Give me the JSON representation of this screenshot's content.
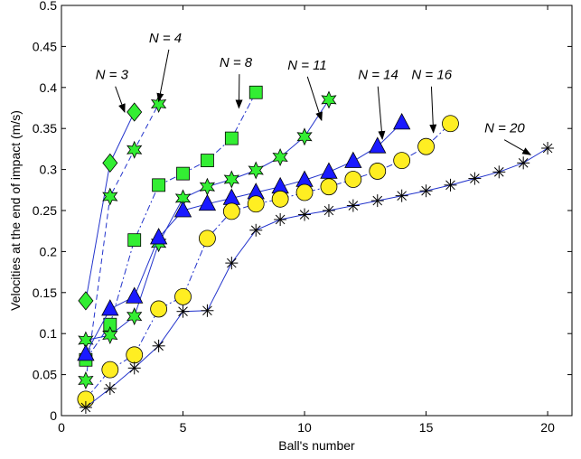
{
  "chart_data": {
    "type": "line",
    "xlabel": "Ball's number",
    "ylabel": "Velocities at the end of impact  (m/s)",
    "xlim": [
      0,
      21
    ],
    "ylim": [
      0,
      0.5
    ],
    "xticks": [
      0,
      5,
      10,
      15,
      20
    ],
    "yticks": [
      0,
      0.05,
      0.1,
      0.15,
      0.2,
      0.25,
      0.3,
      0.35,
      0.4,
      0.45,
      0.5
    ],
    "grid": false,
    "series": [
      {
        "key": "n3",
        "marker": "diamond",
        "fill": "#33ee33",
        "line": "solid",
        "x": [
          1,
          2,
          3
        ],
        "values": [
          0.14,
          0.308,
          0.37
        ]
      },
      {
        "key": "n4",
        "marker": "star",
        "fill": "#33ee33",
        "line": "dashed",
        "x": [
          1,
          2,
          3,
          4
        ],
        "values": [
          0.043,
          0.267,
          0.324,
          0.38
        ]
      },
      {
        "key": "n8",
        "marker": "square",
        "fill": "#33ee33",
        "line": "dashdot",
        "x": [
          1,
          2,
          3,
          4,
          5,
          6,
          7,
          8
        ],
        "values": [
          0.068,
          0.111,
          0.214,
          0.281,
          0.295,
          0.311,
          0.338,
          0.394
        ]
      },
      {
        "key": "n11",
        "marker": "star",
        "fill": "#33ee33",
        "line": "solid",
        "x": [
          1,
          2,
          3,
          4,
          5,
          6,
          7,
          8,
          9,
          10,
          11
        ],
        "values": [
          0.092,
          0.098,
          0.121,
          0.21,
          0.265,
          0.279,
          0.288,
          0.299,
          0.315,
          0.34,
          0.385
        ]
      },
      {
        "key": "n14",
        "marker": "triangle",
        "fill": "#1a1aff",
        "line": "solid",
        "x": [
          1,
          2,
          3,
          4,
          5,
          6,
          7,
          8,
          9,
          10,
          11,
          12,
          13,
          14
        ],
        "values": [
          0.075,
          0.13,
          0.145,
          0.217,
          0.25,
          0.258,
          0.265,
          0.272,
          0.279,
          0.287,
          0.297,
          0.31,
          0.328,
          0.357
        ]
      },
      {
        "key": "n16",
        "marker": "circle",
        "fill": "#ffee22",
        "line": "dashdot",
        "x": [
          1,
          2,
          3,
          4,
          5,
          6,
          7,
          8,
          9,
          10,
          11,
          12,
          13,
          14,
          15,
          16
        ],
        "values": [
          0.02,
          0.056,
          0.074,
          0.13,
          0.145,
          0.216,
          0.249,
          0.258,
          0.264,
          0.272,
          0.279,
          0.288,
          0.298,
          0.311,
          0.328,
          0.356
        ]
      },
      {
        "key": "n20",
        "marker": "asterisk",
        "fill": "#000000",
        "line": "solid",
        "x": [
          1,
          2,
          3,
          4,
          5,
          6,
          7,
          8,
          9,
          10,
          11,
          12,
          13,
          14,
          15,
          16,
          17,
          18,
          19,
          20
        ],
        "values": [
          0.01,
          0.033,
          0.058,
          0.085,
          0.127,
          0.128,
          0.186,
          0.226,
          0.239,
          0.245,
          0.25,
          0.256,
          0.262,
          0.268,
          0.274,
          0.281,
          0.289,
          0.297,
          0.308,
          0.326
        ]
      }
    ],
    "annotations": [
      {
        "text": "N = 3",
        "tx": 1.4,
        "ty": 0.41,
        "ax": 2.6,
        "ay": 0.37
      },
      {
        "text": "N = 4",
        "tx": 3.6,
        "ty": 0.455,
        "ax": 4.0,
        "ay": 0.383
      },
      {
        "text": "N = 8",
        "tx": 6.5,
        "ty": 0.425,
        "ax": 7.3,
        "ay": 0.375
      },
      {
        "text": "N = 11",
        "tx": 9.3,
        "ty": 0.422,
        "ax": 10.7,
        "ay": 0.36
      },
      {
        "text": "N = 14",
        "tx": 12.2,
        "ty": 0.41,
        "ax": 13.2,
        "ay": 0.337
      },
      {
        "text": "N = 16",
        "tx": 14.4,
        "ty": 0.41,
        "ax": 15.3,
        "ay": 0.345
      },
      {
        "text": "N = 20",
        "tx": 17.4,
        "ty": 0.345,
        "ax": 19.3,
        "ay": 0.318
      }
    ]
  }
}
